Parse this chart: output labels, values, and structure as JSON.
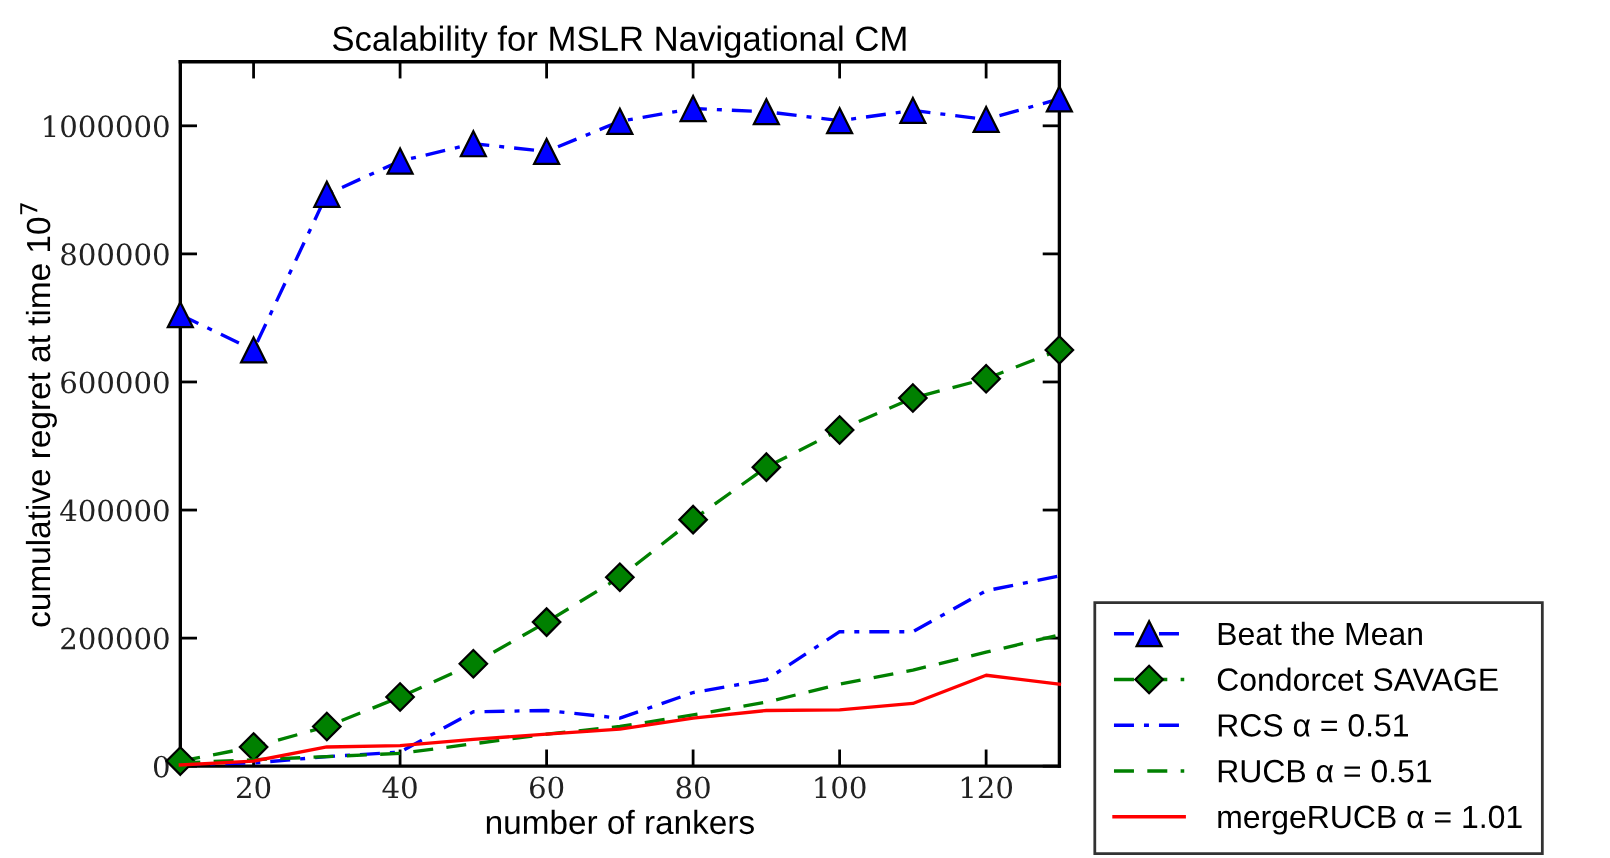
{
  "chart_data": {
    "type": "line",
    "title": "Scalability for MSLR Navigational CM",
    "xlabel": "number of rankers",
    "ylabel": "cumulative regret at time 10$^{7}$",
    "x": [
      10,
      20,
      30,
      40,
      50,
      60,
      70,
      80,
      90,
      100,
      110,
      120,
      130
    ],
    "series": [
      {
        "name": "Beat the Mean",
        "color": "#0000ff",
        "marker": "triangle",
        "line_style": "dashdot",
        "values": [
          705000,
          650000,
          893000,
          945000,
          972000,
          960000,
          1007000,
          1027000,
          1022000,
          1008000,
          1024000,
          1010000,
          1042000
        ]
      },
      {
        "name": "Condorcet SAVAGE",
        "color": "#008000",
        "marker": "diamond",
        "line_style": "dashed",
        "values": [
          8000,
          30000,
          62000,
          108000,
          160000,
          225000,
          295000,
          385000,
          467000,
          525000,
          575000,
          605000,
          650000
        ]
      },
      {
        "name": "RCS α = 0.51",
        "color": "#0000ff",
        "marker": "none",
        "line_style": "dashdot",
        "values": [
          3000,
          5000,
          15000,
          22000,
          85000,
          87000,
          75000,
          115000,
          135000,
          210000,
          210000,
          274000,
          297000
        ]
      },
      {
        "name": "RUCB α = 0.51",
        "color": "#008000",
        "marker": "none",
        "line_style": "dashed",
        "values": [
          5000,
          10000,
          15000,
          20000,
          35000,
          50000,
          62000,
          80000,
          100000,
          128000,
          150000,
          178000,
          205000
        ]
      },
      {
        "name": "mergeRUCB α = 1.01",
        "color": "#ff0000",
        "marker": "none",
        "line_style": "solid",
        "values": [
          2000,
          8000,
          30000,
          32000,
          42000,
          50000,
          58000,
          75000,
          87000,
          88000,
          98000,
          142000,
          128000
        ]
      }
    ],
    "xlim": [
      10,
      130
    ],
    "xticks": [
      20,
      40,
      60,
      80,
      100,
      120
    ],
    "ylim": [
      0,
      1100000
    ],
    "yticks": [
      0,
      200000,
      400000,
      600000,
      800000,
      1000000
    ],
    "grid": false,
    "legend": "bottom right"
  }
}
